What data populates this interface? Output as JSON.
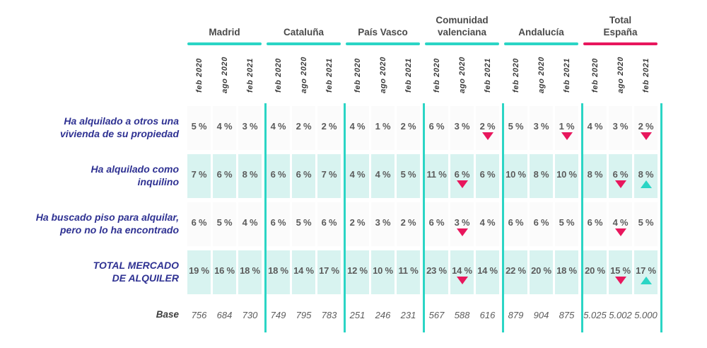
{
  "chart_data": {
    "type": "table",
    "palette": {
      "teal": "#2BD5C5",
      "pink": "#E8175D",
      "mint": "#D8F3F0",
      "navy": "#2E3192",
      "value_gray": "#5C5C5C",
      "header_gray": "#4A4A4A",
      "row_plain_bg": "#FBFBFB"
    },
    "groups": [
      {
        "label": "Madrid",
        "accent": "teal"
      },
      {
        "label": "Cataluña",
        "accent": "teal"
      },
      {
        "label": "País Vasco",
        "accent": "teal"
      },
      {
        "label": "Comunidad\nvalenciana",
        "accent": "teal"
      },
      {
        "label": "Andalucía",
        "accent": "teal"
      },
      {
        "label": "Total\nEspaña",
        "accent": "pink"
      }
    ],
    "periods": [
      "feb 2020",
      "ago 2020",
      "feb 2021"
    ],
    "rows": [
      {
        "label": "Ha alquilado a otros una\nvivienda de su propiedad",
        "shaded": false,
        "cells": [
          {
            "v": "5 %"
          },
          {
            "v": "4 %"
          },
          {
            "v": "3 %"
          },
          {
            "v": "4 %"
          },
          {
            "v": "2 %"
          },
          {
            "v": "2 %"
          },
          {
            "v": "4 %"
          },
          {
            "v": "1 %"
          },
          {
            "v": "2 %"
          },
          {
            "v": "6 %"
          },
          {
            "v": "3 %"
          },
          {
            "v": "2 %",
            "m": "down"
          },
          {
            "v": "5 %"
          },
          {
            "v": "3 %"
          },
          {
            "v": "1 %",
            "m": "down"
          },
          {
            "v": "4 %"
          },
          {
            "v": "3 %"
          },
          {
            "v": "2 %",
            "m": "down"
          }
        ]
      },
      {
        "label": "Ha alquilado como\ninquilino",
        "shaded": true,
        "cells": [
          {
            "v": "7 %"
          },
          {
            "v": "6 %"
          },
          {
            "v": "8 %"
          },
          {
            "v": "6 %"
          },
          {
            "v": "6 %"
          },
          {
            "v": "7 %"
          },
          {
            "v": "4 %"
          },
          {
            "v": "4 %"
          },
          {
            "v": "5 %"
          },
          {
            "v": "11 %"
          },
          {
            "v": "6 %",
            "m": "down"
          },
          {
            "v": "6 %"
          },
          {
            "v": "10 %"
          },
          {
            "v": "8 %"
          },
          {
            "v": "10 %"
          },
          {
            "v": "8 %"
          },
          {
            "v": "6 %",
            "m": "down"
          },
          {
            "v": "8 %",
            "m": "up"
          }
        ]
      },
      {
        "label": "Ha buscado piso para alquilar,\npero no lo ha encontrado",
        "shaded": false,
        "cells": [
          {
            "v": "6 %"
          },
          {
            "v": "5 %"
          },
          {
            "v": "4 %"
          },
          {
            "v": "6 %"
          },
          {
            "v": "5 %"
          },
          {
            "v": "6 %"
          },
          {
            "v": "2 %"
          },
          {
            "v": "3 %"
          },
          {
            "v": "2 %"
          },
          {
            "v": "6 %"
          },
          {
            "v": "3 %",
            "m": "down"
          },
          {
            "v": "4 %"
          },
          {
            "v": "6 %"
          },
          {
            "v": "6 %"
          },
          {
            "v": "5 %"
          },
          {
            "v": "6 %"
          },
          {
            "v": "4 %",
            "m": "down"
          },
          {
            "v": "5 %"
          }
        ]
      },
      {
        "label": "TOTAL MERCADO\nDE ALQUILER",
        "shaded": true,
        "cells": [
          {
            "v": "19 %"
          },
          {
            "v": "16 %"
          },
          {
            "v": "18 %"
          },
          {
            "v": "18 %"
          },
          {
            "v": "14 %"
          },
          {
            "v": "17 %"
          },
          {
            "v": "12 %"
          },
          {
            "v": "10 %"
          },
          {
            "v": "11 %"
          },
          {
            "v": "23 %"
          },
          {
            "v": "14 %",
            "m": "down"
          },
          {
            "v": "14 %"
          },
          {
            "v": "22 %"
          },
          {
            "v": "20 %"
          },
          {
            "v": "18 %"
          },
          {
            "v": "20 %"
          },
          {
            "v": "15 %",
            "m": "down"
          },
          {
            "v": "17 %",
            "m": "up"
          }
        ]
      }
    ],
    "base": {
      "label": "Base",
      "values": [
        "756",
        "684",
        "730",
        "749",
        "795",
        "783",
        "251",
        "246",
        "231",
        "567",
        "588",
        "616",
        "879",
        "904",
        "875",
        "5.025",
        "5.002",
        "5.000"
      ]
    }
  }
}
